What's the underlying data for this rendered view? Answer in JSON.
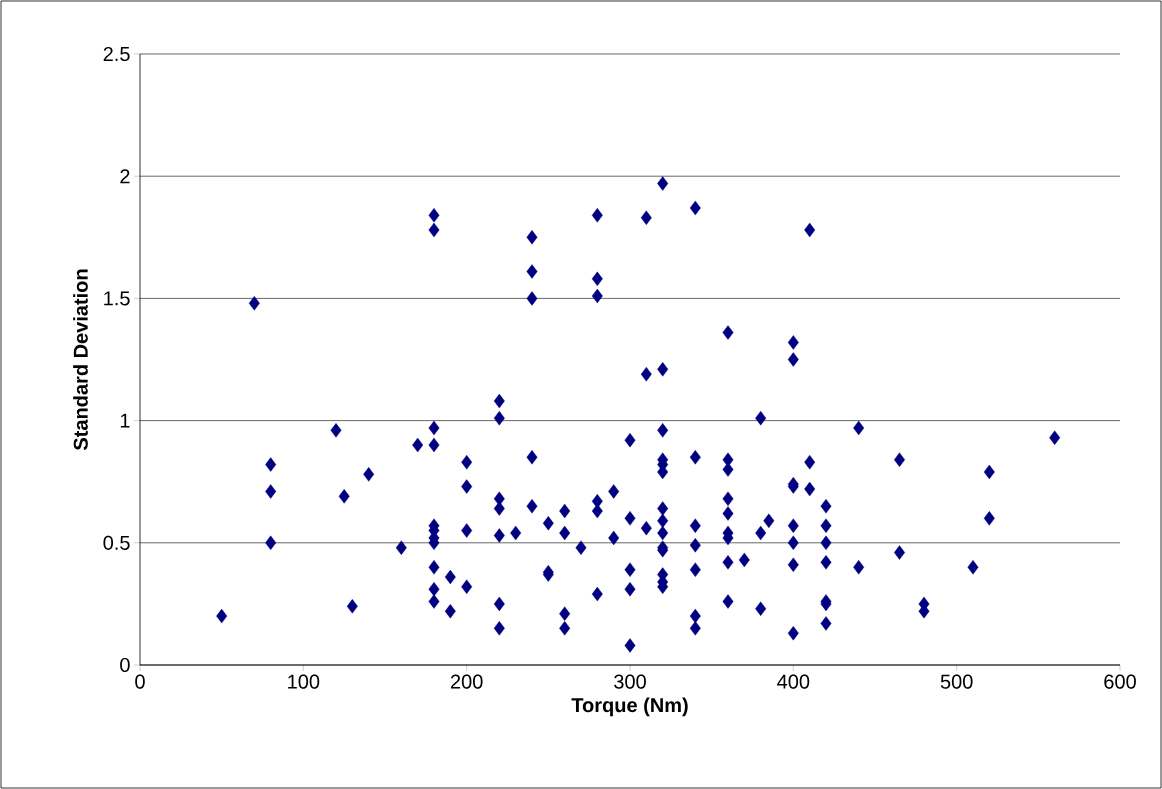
{
  "chart_data": {
    "type": "scatter",
    "xlabel": "Torque (Nm)",
    "ylabel": "Standard Deviation",
    "x": [
      50,
      70,
      80,
      80,
      80,
      120,
      125,
      130,
      140,
      160,
      170,
      180,
      180,
      180,
      180,
      180,
      180,
      180,
      180,
      180,
      180,
      180,
      190,
      190,
      200,
      200,
      200,
      200,
      220,
      220,
      220,
      220,
      220,
      220,
      220,
      230,
      240,
      240,
      240,
      240,
      240,
      250,
      250,
      250,
      260,
      260,
      260,
      260,
      270,
      280,
      280,
      280,
      280,
      280,
      280,
      290,
      290,
      300,
      300,
      300,
      300,
      300,
      310,
      310,
      310,
      320,
      320,
      320,
      320,
      320,
      320,
      320,
      320,
      320,
      320,
      320,
      320,
      320,
      320,
      340,
      340,
      340,
      340,
      340,
      340,
      340,
      360,
      360,
      360,
      360,
      360,
      360,
      360,
      360,
      360,
      370,
      380,
      380,
      380,
      385,
      400,
      400,
      400,
      400,
      400,
      400,
      400,
      400,
      410,
      410,
      410,
      420,
      420,
      420,
      420,
      420,
      420,
      420,
      440,
      440,
      465,
      465,
      480,
      480,
      510,
      520,
      520,
      560
    ],
    "values": [
      0.2,
      1.48,
      0.82,
      0.71,
      0.5,
      0.96,
      0.69,
      0.24,
      0.78,
      0.48,
      0.9,
      1.84,
      1.78,
      0.97,
      0.9,
      0.57,
      0.55,
      0.52,
      0.5,
      0.4,
      0.31,
      0.26,
      0.36,
      0.22,
      0.83,
      0.73,
      0.55,
      0.32,
      1.08,
      1.01,
      0.68,
      0.64,
      0.53,
      0.25,
      0.15,
      0.54,
      1.75,
      1.61,
      1.5,
      0.85,
      0.65,
      0.58,
      0.38,
      0.37,
      0.63,
      0.54,
      0.21,
      0.15,
      0.48,
      1.84,
      1.58,
      1.51,
      0.67,
      0.63,
      0.29,
      0.71,
      0.52,
      0.92,
      0.6,
      0.39,
      0.31,
      0.08,
      1.83,
      1.19,
      0.56,
      1.97,
      1.21,
      0.96,
      0.84,
      0.82,
      0.79,
      0.64,
      0.59,
      0.54,
      0.48,
      0.47,
      0.37,
      0.34,
      0.32,
      1.87,
      0.85,
      0.57,
      0.49,
      0.39,
      0.2,
      0.15,
      1.36,
      0.84,
      0.8,
      0.68,
      0.62,
      0.54,
      0.52,
      0.42,
      0.26,
      0.43,
      1.01,
      0.54,
      0.23,
      0.59,
      1.32,
      1.25,
      0.74,
      0.73,
      0.57,
      0.5,
      0.41,
      0.13,
      1.78,
      0.83,
      0.72,
      0.65,
      0.57,
      0.5,
      0.42,
      0.26,
      0.25,
      0.17,
      0.97,
      0.4,
      0.84,
      0.46,
      0.25,
      0.22,
      0.4,
      0.79,
      0.6,
      0.93
    ],
    "color": "#000080",
    "marker": "diamond",
    "grid": "y",
    "xlim": [
      0,
      600
    ],
    "xticks": [
      0,
      100,
      200,
      300,
      400,
      500,
      600
    ],
    "ylim": [
      0,
      2.5
    ],
    "yticks": [
      0,
      0.5,
      1,
      1.5,
      2,
      2.5
    ]
  }
}
